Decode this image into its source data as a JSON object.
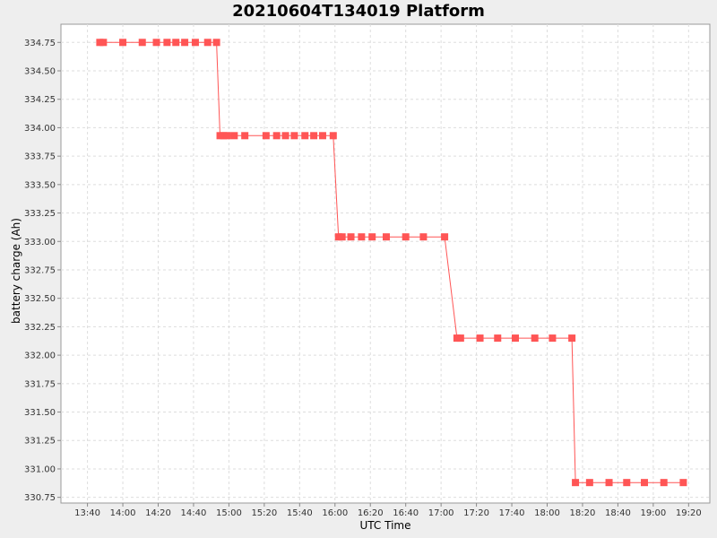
{
  "chart_data": {
    "type": "line",
    "title": "20210604T134019 Platform",
    "xlabel": "UTC Time",
    "ylabel": "battery charge (Ah)",
    "x_unit": "UTC time (HH:MM, 2021-06-04)",
    "xlim": [
      "13:25",
      "19:32"
    ],
    "ylim": [
      330.7,
      334.91
    ],
    "x_ticks": [
      "13:40",
      "14:00",
      "14:20",
      "14:40",
      "15:00",
      "15:20",
      "15:40",
      "16:00",
      "16:20",
      "16:40",
      "17:00",
      "17:20",
      "17:40",
      "18:00",
      "18:20",
      "18:40",
      "19:00",
      "19:20"
    ],
    "y_ticks": [
      "330.75",
      "331.00",
      "331.25",
      "331.50",
      "331.75",
      "332.00",
      "332.25",
      "332.50",
      "332.75",
      "333.00",
      "333.25",
      "333.50",
      "333.75",
      "334.00",
      "334.25",
      "334.50",
      "334.75"
    ],
    "grid": true,
    "series": [
      {
        "name": "",
        "color": "#ff5555",
        "marker": "square",
        "points": [
          [
            "13:47",
            334.75
          ],
          [
            "13:49",
            334.75
          ],
          [
            "14:00",
            334.75
          ],
          [
            "14:11",
            334.75
          ],
          [
            "14:19",
            334.75
          ],
          [
            "14:25",
            334.75
          ],
          [
            "14:30",
            334.75
          ],
          [
            "14:35",
            334.75
          ],
          [
            "14:41",
            334.75
          ],
          [
            "14:48",
            334.75
          ],
          [
            "14:53",
            334.75
          ],
          [
            "14:55",
            333.93
          ],
          [
            "14:57",
            333.93
          ],
          [
            "14:59",
            333.93
          ],
          [
            "15:03",
            333.93
          ],
          [
            "15:09",
            333.93
          ],
          [
            "15:21",
            333.93
          ],
          [
            "15:27",
            333.93
          ],
          [
            "15:32",
            333.93
          ],
          [
            "15:37",
            333.93
          ],
          [
            "15:43",
            333.93
          ],
          [
            "15:48",
            333.93
          ],
          [
            "15:53",
            333.93
          ],
          [
            "15:59",
            333.93
          ],
          [
            "16:02",
            333.04
          ],
          [
            "16:04",
            333.04
          ],
          [
            "16:09",
            333.04
          ],
          [
            "16:15",
            333.04
          ],
          [
            "16:21",
            333.04
          ],
          [
            "16:29",
            333.04
          ],
          [
            "16:40",
            333.04
          ],
          [
            "16:50",
            333.04
          ],
          [
            "17:02",
            333.04
          ],
          [
            "17:09",
            332.15
          ],
          [
            "17:11",
            332.15
          ],
          [
            "17:22",
            332.15
          ],
          [
            "17:32",
            332.15
          ],
          [
            "17:42",
            332.15
          ],
          [
            "17:53",
            332.15
          ],
          [
            "18:03",
            332.15
          ],
          [
            "18:14",
            332.15
          ],
          [
            "18:16",
            330.88
          ],
          [
            "18:24",
            330.88
          ],
          [
            "18:35",
            330.88
          ],
          [
            "18:45",
            330.88
          ],
          [
            "18:55",
            330.88
          ],
          [
            "19:06",
            330.88
          ],
          [
            "19:17",
            330.88
          ]
        ]
      }
    ]
  }
}
